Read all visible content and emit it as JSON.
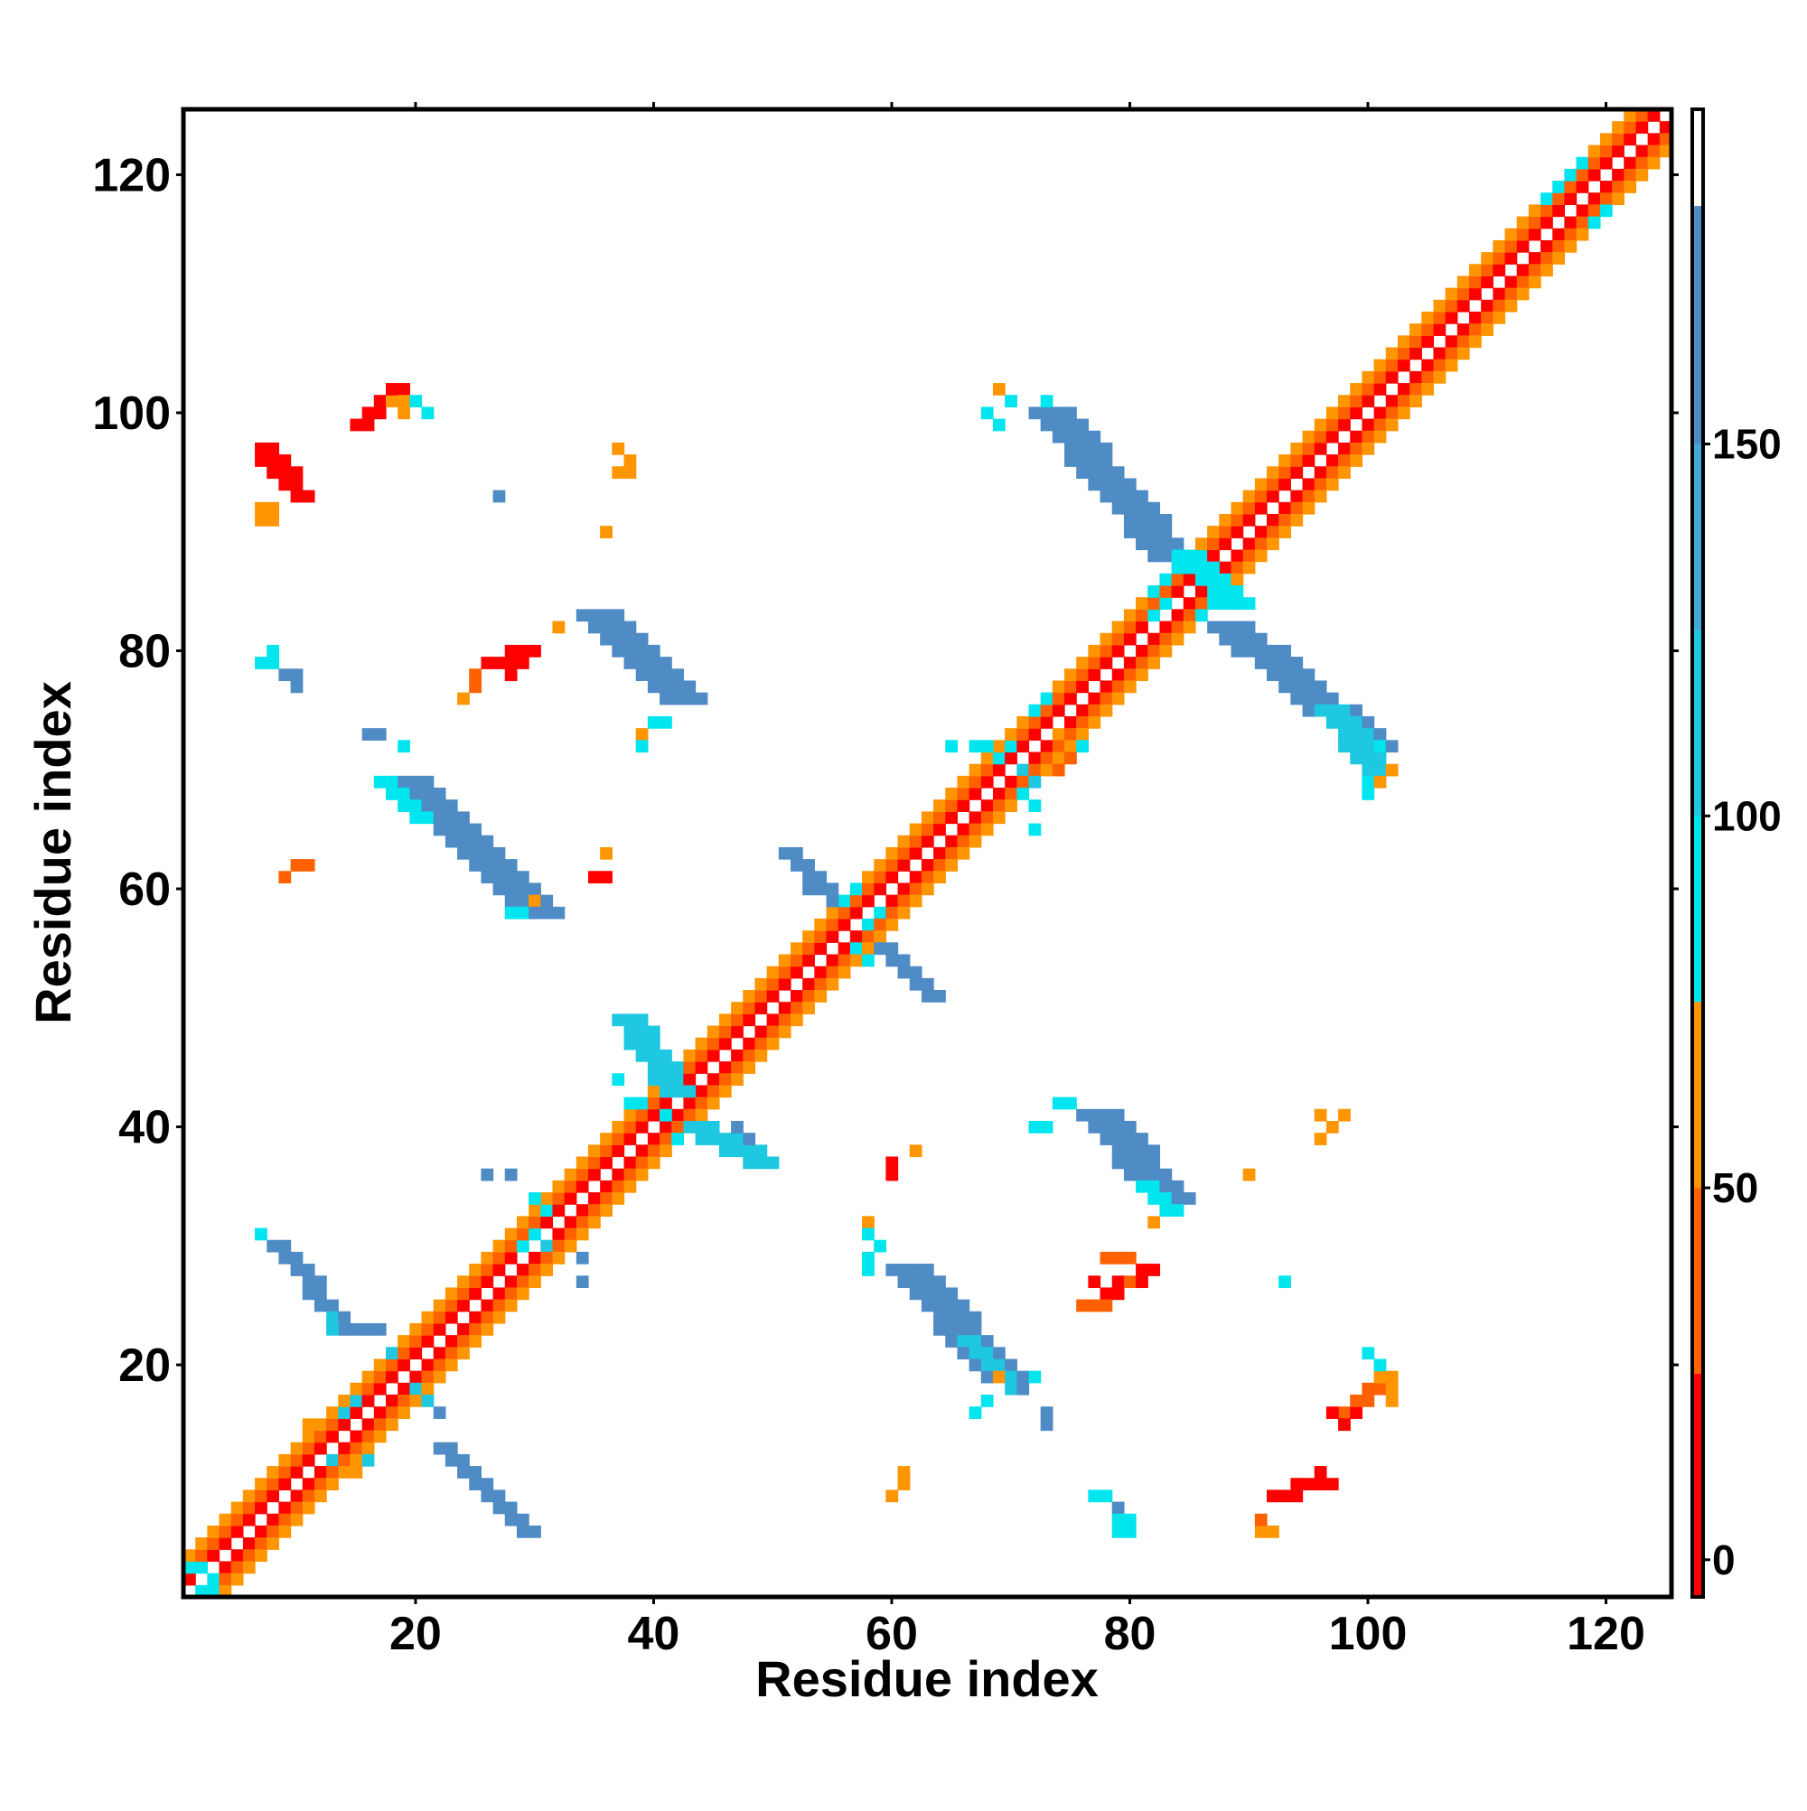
{
  "chart_data": {
    "type": "heatmap",
    "title": "",
    "xlabel": "Residue index",
    "ylabel": "Residue index",
    "xlim": [
      1,
      125
    ],
    "ylim": [
      1,
      125
    ],
    "x_ticks": [
      20,
      40,
      60,
      80,
      100,
      120
    ],
    "y_ticks": [
      20,
      40,
      60,
      80,
      100,
      120
    ],
    "grid": false,
    "legend": "colorbar-right",
    "colorbar": {
      "range": [
        -5,
        195
      ],
      "ticks": [
        0,
        50,
        100,
        150
      ],
      "bands": [
        {
          "from": -5,
          "to": 25,
          "color": "#ff0000"
        },
        {
          "from": 25,
          "to": 50,
          "color": "#ff6000"
        },
        {
          "from": 50,
          "to": 75,
          "color": "#ff9500"
        },
        {
          "from": 75,
          "to": 100,
          "color": "#00e5ee"
        },
        {
          "from": 100,
          "to": 125,
          "color": "#1ec8e0"
        },
        {
          "from": 125,
          "to": 150,
          "color": "#3fa9d8"
        },
        {
          "from": 150,
          "to": 182,
          "color": "#4f8bc4"
        },
        {
          "from": 182,
          "to": 195,
          "color": "#ffffff"
        }
      ]
    },
    "diagonal_band": {
      "x_range": [
        1,
        125
      ],
      "offsets": [
        {
          "offset": 1,
          "value": 20
        },
        {
          "offset": -1,
          "value": 20
        },
        {
          "offset": 2,
          "value": 40
        },
        {
          "offset": -2,
          "value": 40
        },
        {
          "offset": 3,
          "value": 62
        },
        {
          "offset": -3,
          "value": 62
        }
      ]
    },
    "segments": [
      {
        "x1": 8,
        "y1": 30,
        "x2": 14,
        "y2": 23,
        "width": 2,
        "value": 160
      },
      {
        "x1": 18,
        "y1": 69,
        "x2": 29,
        "y2": 58,
        "width": 4,
        "value": 162
      },
      {
        "x1": 17,
        "y1": 69,
        "x2": 20,
        "y2": 66,
        "width": 2,
        "value": 95
      },
      {
        "x1": 22,
        "y1": 13,
        "x2": 29,
        "y2": 6,
        "width": 2,
        "value": 160
      },
      {
        "x1": 34,
        "y1": 83,
        "x2": 41,
        "y2": 76,
        "width": 4,
        "value": 162
      },
      {
        "x1": 37,
        "y1": 49,
        "x2": 41,
        "y2": 43,
        "width": 3,
        "value": 110
      },
      {
        "x1": 43,
        "y1": 40,
        "x2": 48,
        "y2": 37,
        "width": 3,
        "value": 110
      },
      {
        "x1": 60,
        "y1": 28,
        "x2": 68,
        "y2": 19,
        "width": 4,
        "value": 162
      },
      {
        "x1": 66,
        "y1": 22,
        "x2": 70,
        "y2": 18,
        "width": 2,
        "value": 110
      },
      {
        "x1": 51,
        "y1": 63,
        "x2": 55,
        "y2": 59,
        "width": 2,
        "value": 160
      },
      {
        "x1": 59,
        "y1": 55,
        "x2": 63,
        "y2": 51,
        "width": 2,
        "value": 160
      },
      {
        "x1": 72,
        "y1": 100,
        "x2": 82,
        "y2": 88,
        "width": 4,
        "value": 162
      },
      {
        "x1": 76,
        "y1": 41,
        "x2": 82,
        "y2": 34,
        "width": 4,
        "value": 160
      },
      {
        "x1": 81,
        "y1": 35,
        "x2": 83,
        "y2": 33,
        "width": 2,
        "value": 95
      },
      {
        "x1": 87,
        "y1": 82,
        "x2": 99,
        "y2": 72,
        "width": 4,
        "value": 162
      },
      {
        "x1": 96,
        "y1": 75,
        "x2": 100,
        "y2": 70,
        "width": 3,
        "value": 110
      },
      {
        "x1": 84,
        "y1": 88,
        "x2": 88,
        "y2": 84,
        "width": 3,
        "value": 95
      },
      {
        "x1": 7,
        "y1": 97,
        "x2": 10,
        "y2": 93,
        "width": 2,
        "value": 5
      },
      {
        "x1": 15,
        "y1": 99,
        "x2": 18,
        "y2": 102,
        "width": 2,
        "value": 15
      },
      {
        "x1": 26,
        "y1": 79,
        "x2": 29,
        "y2": 80,
        "width": 2,
        "value": 15
      },
      {
        "x1": 92,
        "y1": 9,
        "x2": 96,
        "y2": 10,
        "width": 2,
        "value": 10
      },
      {
        "x1": 78,
        "y1": 26,
        "x2": 81,
        "y2": 28,
        "width": 2,
        "value": 20
      },
      {
        "x1": 98,
        "y1": 16,
        "x2": 101,
        "y2": 19,
        "width": 2,
        "value": 25
      }
    ],
    "cells": [
      {
        "x": 7,
        "y": 79,
        "value": 95
      },
      {
        "x": 8,
        "y": 79,
        "value": 95
      },
      {
        "x": 8,
        "y": 80,
        "value": 95
      },
      {
        "x": 9,
        "y": 78,
        "value": 160
      },
      {
        "x": 10,
        "y": 78,
        "value": 160
      },
      {
        "x": 10,
        "y": 77,
        "value": 160
      },
      {
        "x": 7,
        "y": 96,
        "value": 20
      },
      {
        "x": 8,
        "y": 95,
        "value": 20
      },
      {
        "x": 7,
        "y": 92,
        "value": 60
      },
      {
        "x": 8,
        "y": 92,
        "value": 60
      },
      {
        "x": 7,
        "y": 91,
        "value": 60
      },
      {
        "x": 8,
        "y": 91,
        "value": 60
      },
      {
        "x": 17,
        "y": 100,
        "value": 15
      },
      {
        "x": 18,
        "y": 101,
        "value": 60
      },
      {
        "x": 19,
        "y": 101,
        "value": 60
      },
      {
        "x": 19,
        "y": 100,
        "value": 70
      },
      {
        "x": 20,
        "y": 101,
        "value": 95
      },
      {
        "x": 21,
        "y": 100,
        "value": 95
      },
      {
        "x": 16,
        "y": 73,
        "value": 160
      },
      {
        "x": 17,
        "y": 73,
        "value": 160
      },
      {
        "x": 19,
        "y": 72,
        "value": 95
      },
      {
        "x": 10,
        "y": 62,
        "value": 40
      },
      {
        "x": 11,
        "y": 62,
        "value": 40
      },
      {
        "x": 9,
        "y": 61,
        "value": 40
      },
      {
        "x": 27,
        "y": 93,
        "value": 160
      },
      {
        "x": 37,
        "y": 97,
        "value": 60
      },
      {
        "x": 38,
        "y": 96,
        "value": 60
      },
      {
        "x": 37,
        "y": 95,
        "value": 60
      },
      {
        "x": 38,
        "y": 95,
        "value": 60
      },
      {
        "x": 36,
        "y": 90,
        "value": 60
      },
      {
        "x": 25,
        "y": 78,
        "value": 40
      },
      {
        "x": 25,
        "y": 77,
        "value": 40
      },
      {
        "x": 24,
        "y": 76,
        "value": 60
      },
      {
        "x": 28,
        "y": 78,
        "value": 15
      },
      {
        "x": 29,
        "y": 79,
        "value": 15
      },
      {
        "x": 39,
        "y": 73,
        "value": 60
      },
      {
        "x": 40,
        "y": 74,
        "value": 95
      },
      {
        "x": 41,
        "y": 74,
        "value": 95
      },
      {
        "x": 39,
        "y": 72,
        "value": 95
      },
      {
        "x": 32,
        "y": 82,
        "value": 60
      },
      {
        "x": 36,
        "y": 63,
        "value": 60
      },
      {
        "x": 35,
        "y": 61,
        "value": 15
      },
      {
        "x": 36,
        "y": 61,
        "value": 15
      },
      {
        "x": 30,
        "y": 59,
        "value": 60
      },
      {
        "x": 28,
        "y": 58,
        "value": 95
      },
      {
        "x": 29,
        "y": 58,
        "value": 95
      },
      {
        "x": 16,
        "y": 23,
        "value": 160
      },
      {
        "x": 17,
        "y": 23,
        "value": 160
      },
      {
        "x": 18,
        "y": 21,
        "value": 110
      },
      {
        "x": 20,
        "y": 18,
        "value": 110
      },
      {
        "x": 21,
        "y": 17,
        "value": 110
      },
      {
        "x": 22,
        "y": 16,
        "value": 160
      },
      {
        "x": 13,
        "y": 24,
        "value": 110
      },
      {
        "x": 13,
        "y": 23,
        "value": 110
      },
      {
        "x": 7,
        "y": 31,
        "value": 95
      },
      {
        "x": 26,
        "y": 36,
        "value": 160
      },
      {
        "x": 28,
        "y": 36,
        "value": 160
      },
      {
        "x": 34,
        "y": 29,
        "value": 160
      },
      {
        "x": 34,
        "y": 27,
        "value": 160
      },
      {
        "x": 31,
        "y": 30,
        "value": 110
      },
      {
        "x": 31,
        "y": 33,
        "value": 95
      },
      {
        "x": 30,
        "y": 34,
        "value": 95
      },
      {
        "x": 37,
        "y": 44,
        "value": 95
      },
      {
        "x": 38,
        "y": 42,
        "value": 95
      },
      {
        "x": 39,
        "y": 42,
        "value": 95
      },
      {
        "x": 41,
        "y": 41,
        "value": 95
      },
      {
        "x": 42,
        "y": 39,
        "value": 95
      },
      {
        "x": 47,
        "y": 40,
        "value": 160
      },
      {
        "x": 48,
        "y": 39,
        "value": 160
      },
      {
        "x": 48,
        "y": 37,
        "value": 110
      },
      {
        "x": 53,
        "y": 60,
        "value": 160
      },
      {
        "x": 56,
        "y": 59,
        "value": 95
      },
      {
        "x": 57,
        "y": 60,
        "value": 95
      },
      {
        "x": 58,
        "y": 57,
        "value": 95
      },
      {
        "x": 59,
        "y": 58,
        "value": 95
      },
      {
        "x": 58,
        "y": 54,
        "value": 95
      },
      {
        "x": 57,
        "y": 55,
        "value": 95
      },
      {
        "x": 67,
        "y": 72,
        "value": 95
      },
      {
        "x": 68,
        "y": 72,
        "value": 95
      },
      {
        "x": 69,
        "y": 71,
        "value": 95
      },
      {
        "x": 70,
        "y": 72,
        "value": 95
      },
      {
        "x": 72,
        "y": 75,
        "value": 95
      },
      {
        "x": 73,
        "y": 76,
        "value": 95
      },
      {
        "x": 71,
        "y": 70,
        "value": 110
      },
      {
        "x": 72,
        "y": 69,
        "value": 110
      },
      {
        "x": 72,
        "y": 67,
        "value": 95
      },
      {
        "x": 71,
        "y": 68,
        "value": 95
      },
      {
        "x": 65,
        "y": 72,
        "value": 95
      },
      {
        "x": 72,
        "y": 65,
        "value": 95
      },
      {
        "x": 70,
        "y": 67,
        "value": 60
      },
      {
        "x": 69,
        "y": 66,
        "value": 60
      },
      {
        "x": 74,
        "y": 70,
        "value": 40
      },
      {
        "x": 75,
        "y": 71,
        "value": 40
      },
      {
        "x": 76,
        "y": 72,
        "value": 95
      },
      {
        "x": 74,
        "y": 73,
        "value": 60
      },
      {
        "x": 69,
        "y": 102,
        "value": 60
      },
      {
        "x": 68,
        "y": 100,
        "value": 95
      },
      {
        "x": 69,
        "y": 99,
        "value": 95
      },
      {
        "x": 70,
        "y": 101,
        "value": 95
      },
      {
        "x": 73,
        "y": 101,
        "value": 95
      },
      {
        "x": 82,
        "y": 85,
        "value": 95
      },
      {
        "x": 83,
        "y": 86,
        "value": 95
      },
      {
        "x": 84,
        "y": 87,
        "value": 95
      },
      {
        "x": 85,
        "y": 88,
        "value": 95
      },
      {
        "x": 86,
        "y": 88,
        "value": 95
      },
      {
        "x": 86,
        "y": 83,
        "value": 95
      },
      {
        "x": 87,
        "y": 84,
        "value": 95
      },
      {
        "x": 88,
        "y": 85,
        "value": 95
      },
      {
        "x": 82,
        "y": 83,
        "value": 95
      },
      {
        "x": 83,
        "y": 84,
        "value": 95
      },
      {
        "x": 72,
        "y": 40,
        "value": 95
      },
      {
        "x": 73,
        "y": 40,
        "value": 95
      },
      {
        "x": 74,
        "y": 42,
        "value": 95
      },
      {
        "x": 75,
        "y": 42,
        "value": 95
      },
      {
        "x": 82,
        "y": 32,
        "value": 60
      },
      {
        "x": 62,
        "y": 38,
        "value": 60
      },
      {
        "x": 60,
        "y": 37,
        "value": 15
      },
      {
        "x": 60,
        "y": 36,
        "value": 15
      },
      {
        "x": 90,
        "y": 36,
        "value": 60
      },
      {
        "x": 58,
        "y": 32,
        "value": 60
      },
      {
        "x": 58,
        "y": 31,
        "value": 95
      },
      {
        "x": 59,
        "y": 30,
        "value": 95
      },
      {
        "x": 58,
        "y": 29,
        "value": 95
      },
      {
        "x": 58,
        "y": 28,
        "value": 95
      },
      {
        "x": 68,
        "y": 17,
        "value": 95
      },
      {
        "x": 67,
        "y": 16,
        "value": 95
      },
      {
        "x": 69,
        "y": 19,
        "value": 60
      },
      {
        "x": 71,
        "y": 18,
        "value": 160
      },
      {
        "x": 73,
        "y": 16,
        "value": 160
      },
      {
        "x": 73,
        "y": 15,
        "value": 160
      },
      {
        "x": 72,
        "y": 19,
        "value": 95
      },
      {
        "x": 78,
        "y": 29,
        "value": 40
      },
      {
        "x": 79,
        "y": 29,
        "value": 40
      },
      {
        "x": 80,
        "y": 29,
        "value": 40
      },
      {
        "x": 80,
        "y": 27,
        "value": 40
      },
      {
        "x": 77,
        "y": 27,
        "value": 15
      },
      {
        "x": 78,
        "y": 25,
        "value": 40
      },
      {
        "x": 77,
        "y": 25,
        "value": 40
      },
      {
        "x": 76,
        "y": 25,
        "value": 40
      },
      {
        "x": 93,
        "y": 27,
        "value": 95
      },
      {
        "x": 96,
        "y": 41,
        "value": 60
      },
      {
        "x": 97,
        "y": 40,
        "value": 60
      },
      {
        "x": 98,
        "y": 41,
        "value": 60
      },
      {
        "x": 96,
        "y": 39,
        "value": 60
      },
      {
        "x": 77,
        "y": 9,
        "value": 95
      },
      {
        "x": 78,
        "y": 9,
        "value": 95
      },
      {
        "x": 79,
        "y": 8,
        "value": 160
      },
      {
        "x": 79,
        "y": 7,
        "value": 95
      },
      {
        "x": 80,
        "y": 6,
        "value": 95
      },
      {
        "x": 79,
        "y": 6,
        "value": 95
      },
      {
        "x": 80,
        "y": 7,
        "value": 95
      },
      {
        "x": 61,
        "y": 11,
        "value": 60
      },
      {
        "x": 61,
        "y": 10,
        "value": 60
      },
      {
        "x": 60,
        "y": 9,
        "value": 60
      },
      {
        "x": 96,
        "y": 11,
        "value": 15
      },
      {
        "x": 96,
        "y": 10,
        "value": 15
      },
      {
        "x": 91,
        "y": 6,
        "value": 60
      },
      {
        "x": 92,
        "y": 6,
        "value": 60
      },
      {
        "x": 91,
        "y": 7,
        "value": 40
      },
      {
        "x": 100,
        "y": 21,
        "value": 95
      },
      {
        "x": 101,
        "y": 20,
        "value": 95
      },
      {
        "x": 101,
        "y": 19,
        "value": 60
      },
      {
        "x": 102,
        "y": 19,
        "value": 60
      },
      {
        "x": 102,
        "y": 18,
        "value": 60
      },
      {
        "x": 97,
        "y": 16,
        "value": 15
      },
      {
        "x": 98,
        "y": 15,
        "value": 15
      },
      {
        "x": 99,
        "y": 16,
        "value": 15
      },
      {
        "x": 102,
        "y": 17,
        "value": 60
      },
      {
        "x": 100,
        "y": 69,
        "value": 95
      },
      {
        "x": 101,
        "y": 69,
        "value": 60
      },
      {
        "x": 102,
        "y": 70,
        "value": 60
      },
      {
        "x": 100,
        "y": 68,
        "value": 95
      },
      {
        "x": 101,
        "y": 72,
        "value": 95
      },
      {
        "x": 2,
        "y": 3,
        "value": 95
      },
      {
        "x": 3,
        "y": 2,
        "value": 95
      },
      {
        "x": 1,
        "y": 3,
        "value": 95
      },
      {
        "x": 3,
        "y": 1,
        "value": 95
      },
      {
        "x": 2,
        "y": 1,
        "value": 95
      },
      {
        "x": 11,
        "y": 14,
        "value": 60
      },
      {
        "x": 12,
        "y": 15,
        "value": 60
      },
      {
        "x": 14,
        "y": 16,
        "value": 110
      },
      {
        "x": 15,
        "y": 17,
        "value": 110
      },
      {
        "x": 13,
        "y": 12,
        "value": 110
      },
      {
        "x": 16,
        "y": 12,
        "value": 110
      },
      {
        "x": 15,
        "y": 11,
        "value": 60
      },
      {
        "x": 11,
        "y": 15,
        "value": 60
      },
      {
        "x": 30,
        "y": 31,
        "value": 95
      },
      {
        "x": 29,
        "y": 30,
        "value": 95
      },
      {
        "x": 116,
        "y": 119,
        "value": 95
      },
      {
        "x": 117,
        "y": 120,
        "value": 95
      },
      {
        "x": 118,
        "y": 121,
        "value": 95
      },
      {
        "x": 119,
        "y": 116,
        "value": 95
      },
      {
        "x": 120,
        "y": 117,
        "value": 95
      },
      {
        "x": 115,
        "y": 118,
        "value": 95
      }
    ]
  }
}
